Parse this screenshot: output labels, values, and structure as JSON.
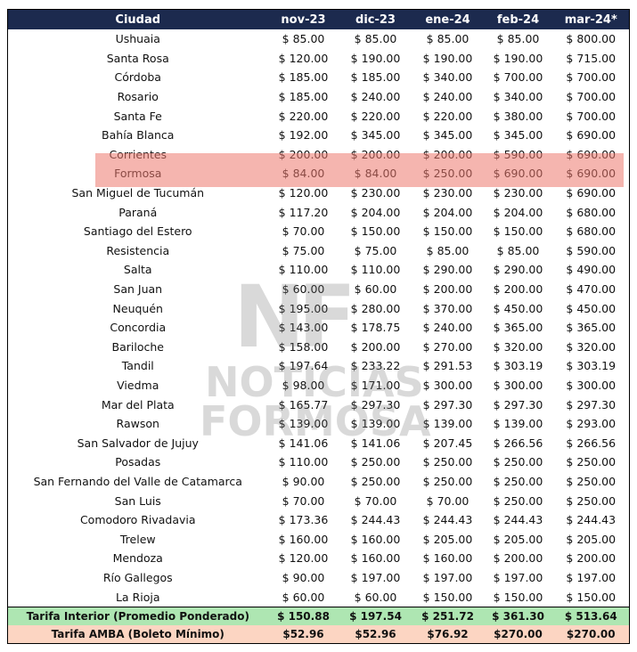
{
  "table": {
    "header": [
      "Ciudad",
      "nov-23",
      "dic-23",
      "ene-24",
      "feb-24",
      "mar-24*"
    ],
    "rows": [
      [
        "Ushuaia",
        "$ 85.00",
        "$ 85.00",
        "$ 85.00",
        "$ 85.00",
        "$ 800.00"
      ],
      [
        "Santa Rosa",
        "$ 120.00",
        "$ 190.00",
        "$ 190.00",
        "$ 190.00",
        "$ 715.00"
      ],
      [
        "Córdoba",
        "$ 185.00",
        "$ 185.00",
        "$ 340.00",
        "$ 700.00",
        "$ 700.00"
      ],
      [
        "Rosario",
        "$ 185.00",
        "$ 240.00",
        "$ 240.00",
        "$ 340.00",
        "$ 700.00"
      ],
      [
        "Santa Fe",
        "$ 220.00",
        "$ 220.00",
        "$ 220.00",
        "$ 380.00",
        "$ 700.00"
      ],
      [
        "Bahía Blanca",
        "$ 192.00",
        "$ 345.00",
        "$ 345.00",
        "$ 345.00",
        "$ 690.00"
      ],
      [
        "Corrientes",
        "$ 200.00",
        "$ 200.00",
        "$ 200.00",
        "$ 590.00",
        "$ 690.00"
      ],
      [
        "Formosa",
        "$ 84.00",
        "$ 84.00",
        "$ 250.00",
        "$ 690.00",
        "$ 690.00"
      ],
      [
        "San Miguel de Tucumán",
        "$ 120.00",
        "$ 230.00",
        "$ 230.00",
        "$ 230.00",
        "$ 690.00"
      ],
      [
        "Paraná",
        "$ 117.20",
        "$ 204.00",
        "$ 204.00",
        "$ 204.00",
        "$ 680.00"
      ],
      [
        "Santiago del Estero",
        "$ 70.00",
        "$ 150.00",
        "$ 150.00",
        "$ 150.00",
        "$ 680.00"
      ],
      [
        "Resistencia",
        "$ 75.00",
        "$ 75.00",
        "$ 85.00",
        "$ 85.00",
        "$ 590.00"
      ],
      [
        "Salta",
        "$ 110.00",
        "$ 110.00",
        "$ 290.00",
        "$ 290.00",
        "$ 490.00"
      ],
      [
        "San Juan",
        "$ 60.00",
        "$ 60.00",
        "$ 200.00",
        "$ 200.00",
        "$ 470.00"
      ],
      [
        "Neuquén",
        "$ 195.00",
        "$ 280.00",
        "$ 370.00",
        "$ 450.00",
        "$ 450.00"
      ],
      [
        "Concordia",
        "$ 143.00",
        "$ 178.75",
        "$ 240.00",
        "$ 365.00",
        "$ 365.00"
      ],
      [
        "Bariloche",
        "$ 158.00",
        "$ 200.00",
        "$ 270.00",
        "$ 320.00",
        "$ 320.00"
      ],
      [
        "Tandil",
        "$ 197.64",
        "$ 233.22",
        "$ 291.53",
        "$ 303.19",
        "$ 303.19"
      ],
      [
        "Viedma",
        "$ 98.00",
        "$ 171.00",
        "$ 300.00",
        "$ 300.00",
        "$ 300.00"
      ],
      [
        "Mar del Plata",
        "$ 165.77",
        "$ 297.30",
        "$ 297.30",
        "$ 297.30",
        "$ 297.30"
      ],
      [
        "Rawson",
        "$ 139.00",
        "$ 139.00",
        "$ 139.00",
        "$ 139.00",
        "$ 293.00"
      ],
      [
        "San Salvador de Jujuy",
        "$ 141.06",
        "$ 141.06",
        "$ 207.45",
        "$ 266.56",
        "$ 266.56"
      ],
      [
        "Posadas",
        "$ 110.00",
        "$ 250.00",
        "$ 250.00",
        "$ 250.00",
        "$ 250.00"
      ],
      [
        "San Fernando del Valle de Catamarca",
        "$ 90.00",
        "$ 250.00",
        "$ 250.00",
        "$ 250.00",
        "$ 250.00"
      ],
      [
        "San Luis",
        "$ 70.00",
        "$ 70.00",
        "$ 70.00",
        "$ 250.00",
        "$ 250.00"
      ],
      [
        "Comodoro Rivadavia",
        "$ 173.36",
        "$ 244.43",
        "$ 244.43",
        "$ 244.43",
        "$ 244.43"
      ],
      [
        "Trelew",
        "$ 160.00",
        "$ 160.00",
        "$ 205.00",
        "$ 205.00",
        "$ 205.00"
      ],
      [
        "Mendoza",
        "$ 120.00",
        "$ 160.00",
        "$ 160.00",
        "$ 200.00",
        "$ 200.00"
      ],
      [
        "Río Gallegos",
        "$ 90.00",
        "$ 197.00",
        "$ 197.00",
        "$ 197.00",
        "$ 197.00"
      ],
      [
        "La Rioja",
        "$ 60.00",
        "$ 60.00",
        "$ 150.00",
        "$ 150.00",
        "$ 150.00"
      ]
    ],
    "footer": [
      [
        "Tarifa Interior (Promedio Ponderado)",
        "$ 150.88",
        "$ 197.54",
        "$ 251.72",
        "$ 361.30",
        "$ 513.64"
      ],
      [
        "Tarifa AMBA (Boleto Mínimo)",
        "$52.96",
        "$52.96",
        "$76.92",
        "$270.00",
        "$270.00"
      ]
    ]
  },
  "watermark": {
    "logo": "NF",
    "line1": "NOTICIAS",
    "line2": "FORMOSA"
  }
}
